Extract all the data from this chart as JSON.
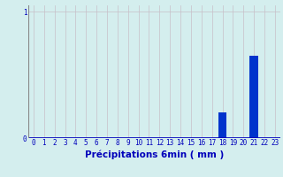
{
  "values": [
    0,
    0,
    0,
    0,
    0,
    0,
    0,
    0,
    0,
    0,
    0,
    0,
    0,
    0,
    0,
    0,
    0,
    0,
    0.2,
    0,
    0,
    0.65,
    0,
    0
  ],
  "categories": [
    0,
    1,
    2,
    3,
    4,
    5,
    6,
    7,
    8,
    9,
    10,
    11,
    12,
    13,
    14,
    15,
    16,
    17,
    18,
    19,
    20,
    21,
    22,
    23
  ],
  "bar_color": "#0033cc",
  "background_color": "#d4eeee",
  "grid_color": "#c8c0c8",
  "axis_label_color": "#0000bb",
  "xlabel": "Précipitations 6min ( mm )",
  "xlabel_fontsize": 7.5,
  "tick_fontsize": 5.5,
  "ylim": [
    0,
    1.05
  ],
  "xlim": [
    -0.5,
    23.5
  ],
  "yticks": [
    0,
    1
  ],
  "ytick_labels": [
    "0",
    "1"
  ]
}
